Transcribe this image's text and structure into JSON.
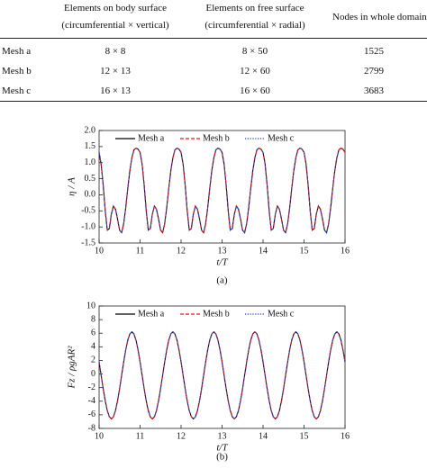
{
  "table": {
    "columns": [
      [
        "Elements on body surface",
        "(circumferential × vertical)"
      ],
      [
        "Elements on free surface",
        "(circumferential × radial)"
      ],
      [
        "Nodes in whole domain"
      ]
    ],
    "rows": [
      [
        "Mesh a",
        "8 × 8",
        "8 × 50",
        1525
      ],
      [
        "Mesh b",
        "12 × 13",
        "12 × 60",
        2799
      ],
      [
        "Mesh c",
        "16 × 13",
        "16 × 60",
        3683
      ]
    ]
  },
  "charts": [
    {
      "type": "line",
      "caption": "(a)",
      "xlabel": "t/T",
      "ylabel": "η / A",
      "xlim": [
        10,
        16
      ],
      "ylim": [
        -1.5,
        2.0
      ],
      "xticks": [
        10,
        11,
        12,
        13,
        14,
        15,
        16
      ],
      "yticks": [
        {
          "value": -1.5,
          "label": "-1.5"
        },
        {
          "value": -1,
          "label": "-1.0"
        },
        {
          "value": -0.5,
          "label": "-0.5"
        },
        {
          "value": 0,
          "label": "0.0"
        },
        {
          "value": 0.5,
          "label": "0.5"
        },
        {
          "value": 1,
          "label": "1.0"
        },
        {
          "value": 1.5,
          "label": "1.5"
        },
        {
          "value": 2,
          "label": "2.0"
        }
      ],
      "x": [
        10,
        10.05,
        10.1,
        10.15,
        10.2,
        10.25,
        10.3,
        10.35,
        10.4,
        10.45,
        10.5,
        10.55,
        10.6,
        10.65,
        10.7,
        10.75,
        10.8,
        10.85,
        10.9,
        10.95,
        11,
        11.05,
        11.1,
        11.15,
        11.2,
        11.25,
        11.3,
        11.35,
        11.4,
        11.45,
        11.5,
        11.55,
        11.6,
        11.65,
        11.7,
        11.75,
        11.8,
        11.85,
        11.9,
        11.95,
        12,
        12.05,
        12.1,
        12.15,
        12.2,
        12.25,
        12.3,
        12.35,
        12.4,
        12.45,
        12.5,
        12.55,
        12.6,
        12.65,
        12.7,
        12.75,
        12.8,
        12.85,
        12.9,
        12.95,
        13,
        13.05,
        13.1,
        13.15,
        13.2,
        13.25,
        13.3,
        13.35,
        13.4,
        13.45,
        13.5,
        13.55,
        13.6,
        13.65,
        13.7,
        13.75,
        13.8,
        13.85,
        13.9,
        13.95,
        14,
        14.05,
        14.1,
        14.15,
        14.2,
        14.25,
        14.3,
        14.35,
        14.4,
        14.45,
        14.5,
        14.55,
        14.6,
        14.65,
        14.7,
        14.75,
        14.8,
        14.85,
        14.9,
        14.95,
        15,
        15.05,
        15.1,
        15.15,
        15.2,
        15.25,
        15.3,
        15.35,
        15.4,
        15.45,
        15.5,
        15.55,
        15.6,
        15.65,
        15.7,
        15.75,
        15.8,
        15.85,
        15.9,
        15.95,
        16
      ],
      "series": [
        {
          "name": "Mesh a",
          "color": "#000000",
          "dash": "solid",
          "values": [
            1.32,
            0.95,
            0.3,
            -0.5,
            -1.1,
            -1.05,
            -0.6,
            -0.35,
            -0.45,
            -0.75,
            -1.1,
            -1.18,
            -0.9,
            -0.4,
            0.2,
            0.75,
            1.15,
            1.4,
            1.45,
            1.42,
            1.32,
            0.95,
            0.3,
            -0.5,
            -1.1,
            -1.05,
            -0.6,
            -0.35,
            -0.45,
            -0.75,
            -1.1,
            -1.18,
            -0.9,
            -0.4,
            0.2,
            0.75,
            1.15,
            1.4,
            1.45,
            1.42,
            1.32,
            0.95,
            0.3,
            -0.5,
            -1.1,
            -1.05,
            -0.6,
            -0.35,
            -0.45,
            -0.75,
            -1.1,
            -1.18,
            -0.9,
            -0.4,
            0.2,
            0.75,
            1.15,
            1.4,
            1.45,
            1.42,
            1.32,
            0.95,
            0.3,
            -0.5,
            -1.1,
            -1.05,
            -0.6,
            -0.35,
            -0.45,
            -0.75,
            -1.1,
            -1.18,
            -0.9,
            -0.4,
            0.2,
            0.75,
            1.15,
            1.4,
            1.45,
            1.42,
            1.32,
            0.95,
            0.3,
            -0.5,
            -1.1,
            -1.05,
            -0.6,
            -0.35,
            -0.45,
            -0.75,
            -1.1,
            -1.18,
            -0.9,
            -0.4,
            0.2,
            0.75,
            1.15,
            1.4,
            1.45,
            1.42,
            1.32,
            0.95,
            0.3,
            -0.5,
            -1.1,
            -1.05,
            -0.6,
            -0.35,
            -0.45,
            -0.75,
            -1.1,
            -1.18,
            -0.9,
            -0.4,
            0.2,
            0.75,
            1.15,
            1.4,
            1.45,
            1.42,
            1.32
          ]
        },
        {
          "name": "Mesh b",
          "color": "#e41a1c",
          "dash": "dashed",
          "values": [
            1.32,
            0.95,
            0.3,
            -0.5,
            -1.1,
            -1.05,
            -0.6,
            -0.35,
            -0.45,
            -0.75,
            -1.1,
            -1.18,
            -0.9,
            -0.4,
            0.2,
            0.75,
            1.15,
            1.4,
            1.45,
            1.42,
            1.32,
            0.95,
            0.3,
            -0.5,
            -1.1,
            -1.05,
            -0.6,
            -0.35,
            -0.45,
            -0.75,
            -1.1,
            -1.18,
            -0.9,
            -0.4,
            0.2,
            0.75,
            1.15,
            1.4,
            1.45,
            1.42,
            1.32,
            0.95,
            0.3,
            -0.5,
            -1.1,
            -1.05,
            -0.6,
            -0.35,
            -0.45,
            -0.75,
            -1.1,
            -1.18,
            -0.9,
            -0.4,
            0.2,
            0.75,
            1.15,
            1.4,
            1.45,
            1.42,
            1.32,
            0.95,
            0.3,
            -0.5,
            -1.1,
            -1.05,
            -0.6,
            -0.35,
            -0.45,
            -0.75,
            -1.1,
            -1.18,
            -0.9,
            -0.4,
            0.2,
            0.75,
            1.15,
            1.4,
            1.45,
            1.42,
            1.32,
            0.95,
            0.3,
            -0.5,
            -1.1,
            -1.05,
            -0.6,
            -0.35,
            -0.45,
            -0.75,
            -1.1,
            -1.18,
            -0.9,
            -0.4,
            0.2,
            0.75,
            1.15,
            1.4,
            1.45,
            1.42,
            1.32,
            0.95,
            0.3,
            -0.5,
            -1.1,
            -1.05,
            -0.6,
            -0.35,
            -0.45,
            -0.75,
            -1.1,
            -1.18,
            -0.9,
            -0.4,
            0.2,
            0.75,
            1.15,
            1.4,
            1.45,
            1.42,
            1.32
          ]
        },
        {
          "name": "Mesh c",
          "color": "#1f3fbf",
          "dash": "dotted",
          "values": [
            1.32,
            0.95,
            0.3,
            -0.5,
            -1.1,
            -1.05,
            -0.6,
            -0.35,
            -0.45,
            -0.75,
            -1.1,
            -1.18,
            -0.9,
            -0.4,
            0.2,
            0.75,
            1.15,
            1.4,
            1.45,
            1.42,
            1.32,
            0.95,
            0.3,
            -0.5,
            -1.1,
            -1.05,
            -0.6,
            -0.35,
            -0.45,
            -0.75,
            -1.1,
            -1.18,
            -0.9,
            -0.4,
            0.2,
            0.75,
            1.15,
            1.4,
            1.45,
            1.42,
            1.32,
            0.95,
            0.3,
            -0.5,
            -1.1,
            -1.05,
            -0.6,
            -0.35,
            -0.45,
            -0.75,
            -1.1,
            -1.18,
            -0.9,
            -0.4,
            0.2,
            0.75,
            1.15,
            1.4,
            1.45,
            1.42,
            1.32,
            0.95,
            0.3,
            -0.5,
            -1.1,
            -1.05,
            -0.6,
            -0.35,
            -0.45,
            -0.75,
            -1.1,
            -1.18,
            -0.9,
            -0.4,
            0.2,
            0.75,
            1.15,
            1.4,
            1.45,
            1.42,
            1.32,
            0.95,
            0.3,
            -0.5,
            -1.1,
            -1.05,
            -0.6,
            -0.35,
            -0.45,
            -0.75,
            -1.1,
            -1.18,
            -0.9,
            -0.4,
            0.2,
            0.75,
            1.15,
            1.4,
            1.45,
            1.42,
            1.32,
            0.95,
            0.3,
            -0.5,
            -1.1,
            -1.05,
            -0.6,
            -0.35,
            -0.45,
            -0.75,
            -1.1,
            -1.18,
            -0.9,
            -0.4,
            0.2,
            0.75,
            1.15,
            1.4,
            1.45,
            1.42,
            1.32
          ]
        }
      ]
    },
    {
      "type": "line",
      "caption": "(b)",
      "xlabel": "t/T",
      "ylabel": "Fz / ρgAR²",
      "xlim": [
        10,
        16
      ],
      "ylim": [
        -8,
        10
      ],
      "xticks": [
        10,
        11,
        12,
        13,
        14,
        15,
        16
      ],
      "yticks": [
        -8,
        -6,
        -4,
        -2,
        0,
        2,
        4,
        6,
        8,
        10
      ],
      "x": [
        10,
        10.05,
        10.1,
        10.15,
        10.2,
        10.25,
        10.3,
        10.35,
        10.4,
        10.45,
        10.5,
        10.55,
        10.6,
        10.65,
        10.7,
        10.75,
        10.8,
        10.85,
        10.9,
        10.95,
        11,
        11.05,
        11.1,
        11.15,
        11.2,
        11.25,
        11.3,
        11.35,
        11.4,
        11.45,
        11.5,
        11.55,
        11.6,
        11.65,
        11.7,
        11.75,
        11.8,
        11.85,
        11.9,
        11.95,
        12,
        12.05,
        12.1,
        12.15,
        12.2,
        12.25,
        12.3,
        12.35,
        12.4,
        12.45,
        12.5,
        12.55,
        12.6,
        12.65,
        12.7,
        12.75,
        12.8,
        12.85,
        12.9,
        12.95,
        13,
        13.05,
        13.1,
        13.15,
        13.2,
        13.25,
        13.3,
        13.35,
        13.4,
        13.45,
        13.5,
        13.55,
        13.6,
        13.65,
        13.7,
        13.75,
        13.8,
        13.85,
        13.9,
        13.95,
        14,
        14.05,
        14.1,
        14.15,
        14.2,
        14.25,
        14.3,
        14.35,
        14.4,
        14.45,
        14.5,
        14.55,
        14.6,
        14.65,
        14.7,
        14.75,
        14.8,
        14.85,
        14.9,
        14.95,
        15,
        15.05,
        15.1,
        15.15,
        15.2,
        15.25,
        15.3,
        15.35,
        15.4,
        15.45,
        15.5,
        15.55,
        15.6,
        15.65,
        15.7,
        15.75,
        15.8,
        15.85,
        15.9,
        15.95,
        16
      ],
      "series": [
        {
          "name": "Mesh a",
          "color": "#000000",
          "dash": "solid",
          "values": [
            1.78,
            -0.2,
            -2.18,
            -3.96,
            -5.38,
            -6.29,
            -6.6,
            -6.29,
            -5.38,
            -3.96,
            -2.18,
            -0.2,
            1.78,
            3.56,
            4.98,
            5.89,
            6.2,
            5.89,
            4.98,
            3.56,
            1.78,
            -0.2,
            -2.18,
            -3.96,
            -5.38,
            -6.29,
            -6.6,
            -6.29,
            -5.38,
            -3.96,
            -2.18,
            -0.2,
            1.78,
            3.56,
            4.98,
            5.89,
            6.2,
            5.89,
            4.98,
            3.56,
            1.78,
            -0.2,
            -2.18,
            -3.96,
            -5.38,
            -6.29,
            -6.6,
            -6.29,
            -5.38,
            -3.96,
            -2.18,
            -0.2,
            1.78,
            3.56,
            4.98,
            5.89,
            6.2,
            5.89,
            4.98,
            3.56,
            1.78,
            -0.2,
            -2.18,
            -3.96,
            -5.38,
            -6.29,
            -6.6,
            -6.29,
            -5.38,
            -3.96,
            -2.18,
            -0.2,
            1.78,
            3.56,
            4.98,
            5.89,
            6.2,
            5.89,
            4.98,
            3.56,
            1.78,
            -0.2,
            -2.18,
            -3.96,
            -5.38,
            -6.29,
            -6.6,
            -6.29,
            -5.38,
            -3.96,
            -2.18,
            -0.2,
            1.78,
            3.56,
            4.98,
            5.89,
            6.2,
            5.89,
            4.98,
            3.56,
            1.78,
            -0.2,
            -2.18,
            -3.96,
            -5.38,
            -6.29,
            -6.6,
            -6.29,
            -5.38,
            -3.96,
            -2.18,
            -0.2,
            1.78,
            3.56,
            4.98,
            5.89,
            6.2,
            5.89,
            4.98,
            3.56,
            1.78
          ]
        },
        {
          "name": "Mesh b",
          "color": "#e41a1c",
          "dash": "dashed",
          "values": [
            1.78,
            -0.2,
            -2.18,
            -3.96,
            -5.38,
            -6.29,
            -6.6,
            -6.29,
            -5.38,
            -3.96,
            -2.18,
            -0.2,
            1.78,
            3.56,
            4.98,
            5.89,
            6.2,
            5.89,
            4.98,
            3.56,
            1.78,
            -0.2,
            -2.18,
            -3.96,
            -5.38,
            -6.29,
            -6.6,
            -6.29,
            -5.38,
            -3.96,
            -2.18,
            -0.2,
            1.78,
            3.56,
            4.98,
            5.89,
            6.2,
            5.89,
            4.98,
            3.56,
            1.78,
            -0.2,
            -2.18,
            -3.96,
            -5.38,
            -6.29,
            -6.6,
            -6.29,
            -5.38,
            -3.96,
            -2.18,
            -0.2,
            1.78,
            3.56,
            4.98,
            5.89,
            6.2,
            5.89,
            4.98,
            3.56,
            1.78,
            -0.2,
            -2.18,
            -3.96,
            -5.38,
            -6.29,
            -6.6,
            -6.29,
            -5.38,
            -3.96,
            -2.18,
            -0.2,
            1.78,
            3.56,
            4.98,
            5.89,
            6.2,
            5.89,
            4.98,
            3.56,
            1.78,
            -0.2,
            -2.18,
            -3.96,
            -5.38,
            -6.29,
            -6.6,
            -6.29,
            -5.38,
            -3.96,
            -2.18,
            -0.2,
            1.78,
            3.56,
            4.98,
            5.89,
            6.2,
            5.89,
            4.98,
            3.56,
            1.78,
            -0.2,
            -2.18,
            -3.96,
            -5.38,
            -6.29,
            -6.6,
            -6.29,
            -5.38,
            -3.96,
            -2.18,
            -0.2,
            1.78,
            3.56,
            4.98,
            5.89,
            6.2,
            5.89,
            4.98,
            3.56,
            1.78
          ]
        },
        {
          "name": "Mesh c",
          "color": "#1f3fbf",
          "dash": "dotted",
          "values": [
            1.78,
            -0.2,
            -2.18,
            -3.96,
            -5.38,
            -6.29,
            -6.6,
            -6.29,
            -5.38,
            -3.96,
            -2.18,
            -0.2,
            1.78,
            3.56,
            4.98,
            5.89,
            6.2,
            5.89,
            4.98,
            3.56,
            1.78,
            -0.2,
            -2.18,
            -3.96,
            -5.38,
            -6.29,
            -6.6,
            -6.29,
            -5.38,
            -3.96,
            -2.18,
            -0.2,
            1.78,
            3.56,
            4.98,
            5.89,
            6.2,
            5.89,
            4.98,
            3.56,
            1.78,
            -0.2,
            -2.18,
            -3.96,
            -5.38,
            -6.29,
            -6.6,
            -6.29,
            -5.38,
            -3.96,
            -2.18,
            -0.2,
            1.78,
            3.56,
            4.98,
            5.89,
            6.2,
            5.89,
            4.98,
            3.56,
            1.78,
            -0.2,
            -2.18,
            -3.96,
            -5.38,
            -6.29,
            -6.6,
            -6.29,
            -5.38,
            -3.96,
            -2.18,
            -0.2,
            1.78,
            3.56,
            4.98,
            5.89,
            6.2,
            5.89,
            4.98,
            3.56,
            1.78,
            -0.2,
            -2.18,
            -3.96,
            -5.38,
            -6.29,
            -6.6,
            -6.29,
            -5.38,
            -3.96,
            -2.18,
            -0.2,
            1.78,
            3.56,
            4.98,
            5.89,
            6.2,
            5.89,
            4.98,
            3.56,
            1.78,
            -0.2,
            -2.18,
            -3.96,
            -5.38,
            -6.29,
            -6.6,
            -6.29,
            -5.38,
            -3.96,
            -2.18,
            -0.2,
            1.78,
            3.56,
            4.98,
            5.89,
            6.2,
            5.89,
            4.98,
            3.56,
            1.78
          ]
        }
      ]
    }
  ]
}
